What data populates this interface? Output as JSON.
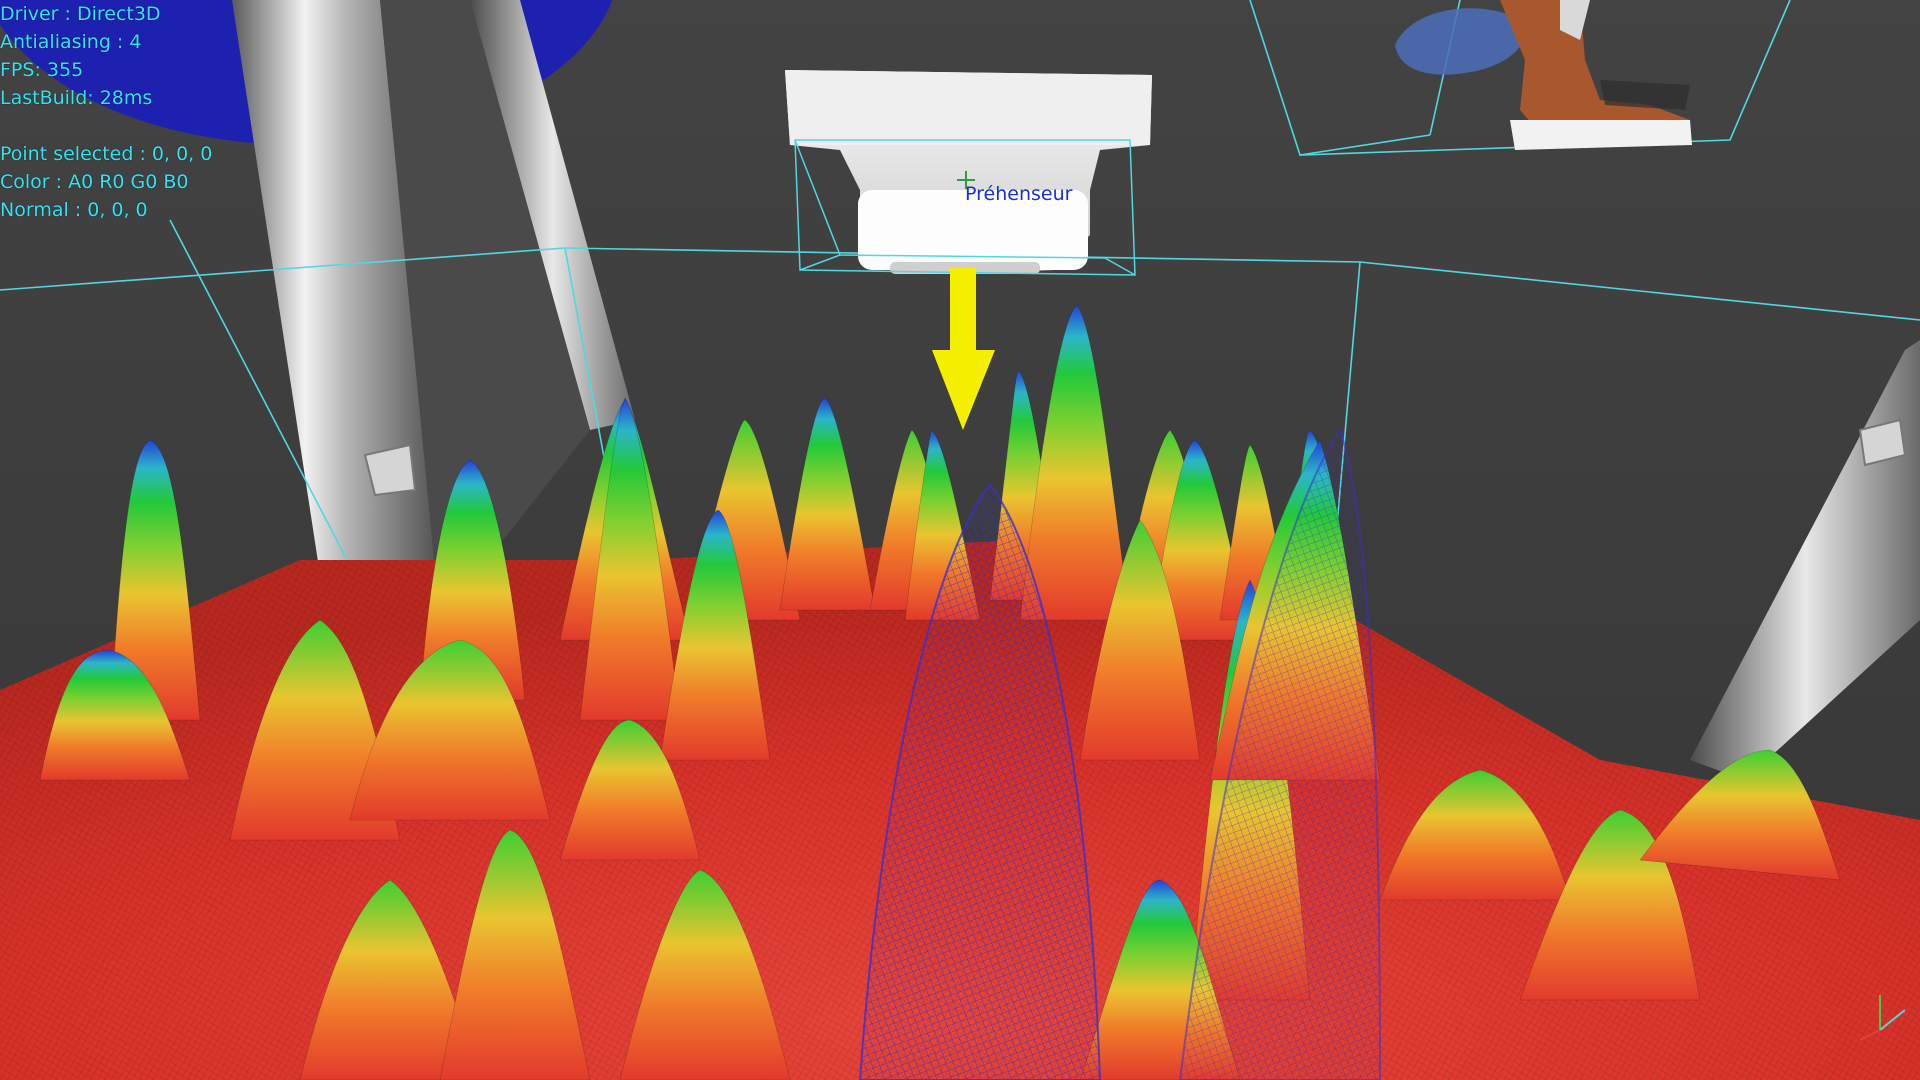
{
  "hud": {
    "driver": "Driver : Direct3D",
    "antialiasing": "Antialiasing : 4",
    "fps": "FPS: 355",
    "last_build": "LastBuild: 28ms",
    "point_selected": "Point selected : 0, 0, 0",
    "color": "Color : A0 R0 G0 B0",
    "normal": "Normal : 0, 0, 0"
  },
  "scene": {
    "gripper_label": "Préhenseur",
    "background_color": "#3e3e3e",
    "bounding_box_color": "#4fd8e0",
    "arrow_color": "#f5f000",
    "blue_sphere_color": "#1e20b0",
    "surface_colormap": [
      "#e23a2c",
      "#f07a2a",
      "#e9c530",
      "#7fd030",
      "#22c93a",
      "#2bb5c9",
      "#2440d8"
    ],
    "icons": [
      "gripper-icon",
      "down-arrow-icon",
      "point-cloud-icon",
      "axis-gizmo-icon"
    ]
  }
}
